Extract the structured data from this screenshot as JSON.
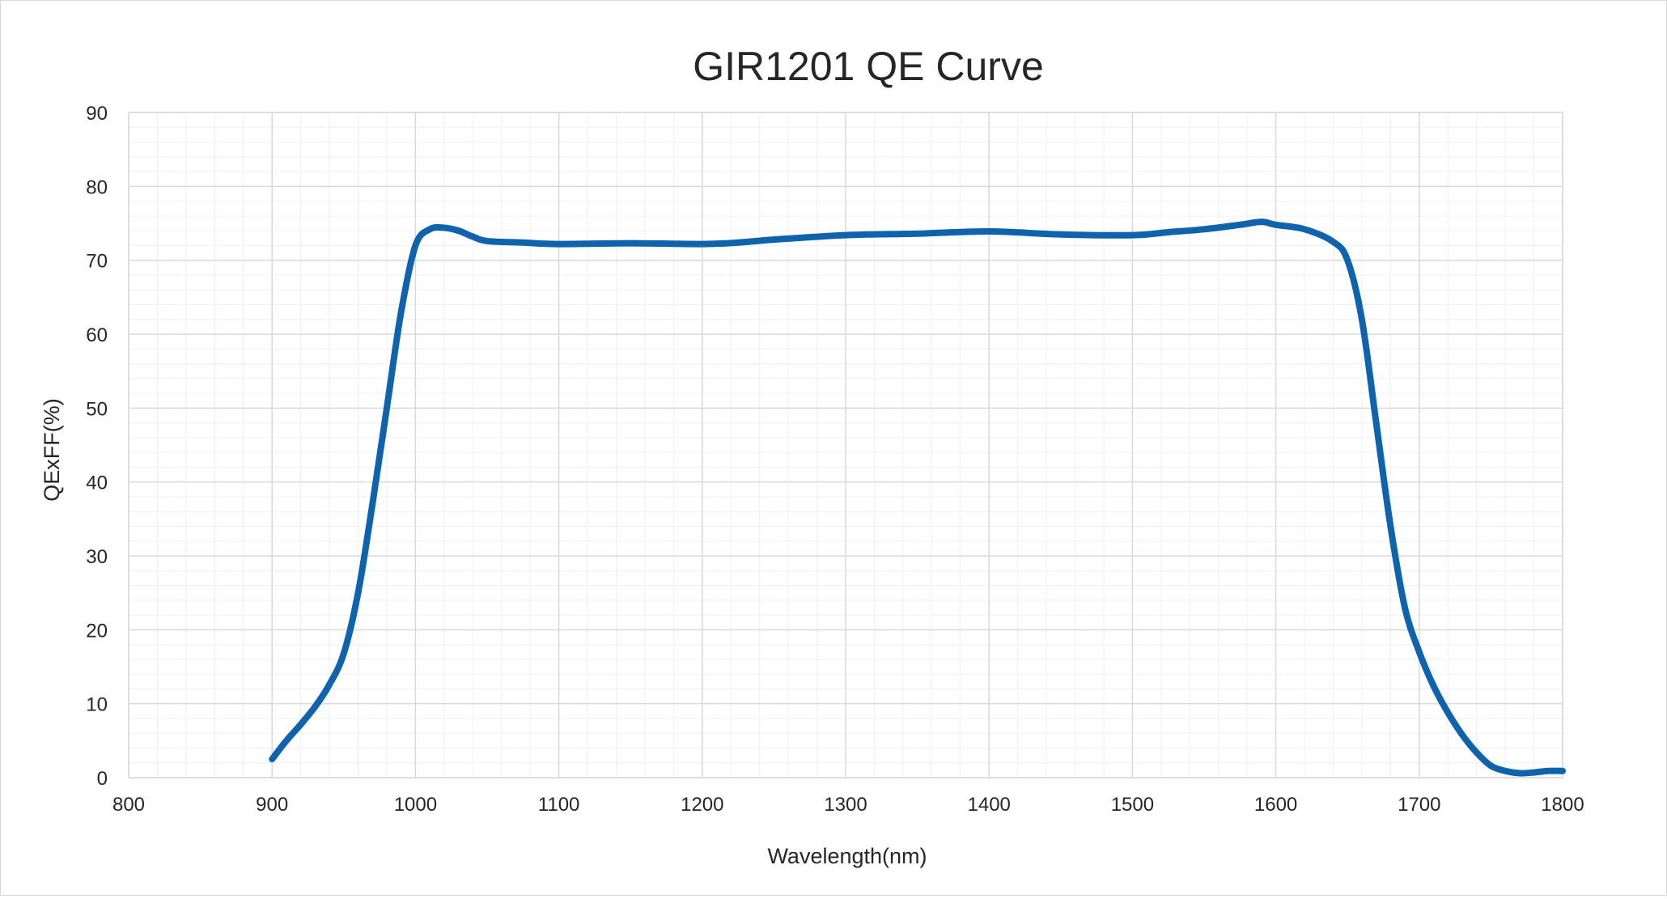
{
  "chart_data": {
    "type": "line",
    "title": "GIR1201 QE Curve",
    "xlabel": "Wavelength(nm)",
    "ylabel": "QExFF(%)",
    "xlim": [
      800,
      1800
    ],
    "ylim": [
      0,
      90
    ],
    "x_ticks": [
      800,
      900,
      1000,
      1100,
      1200,
      1300,
      1400,
      1500,
      1600,
      1700,
      1800
    ],
    "y_ticks": [
      0,
      10,
      20,
      30,
      40,
      50,
      60,
      70,
      80,
      90
    ],
    "x_tick_labels": [
      "800",
      "900",
      "1000",
      "1100",
      "1200",
      "1300",
      "1400",
      "1500",
      "1600",
      "1700",
      "1800"
    ],
    "y_tick_labels": [
      "0",
      "10",
      "20",
      "30",
      "40",
      "50",
      "60",
      "70",
      "80",
      "90"
    ],
    "grid": true,
    "minor_grid": true,
    "legend": "none",
    "series": [
      {
        "color": "#0f63ad",
        "points": [
          [
            900,
            2.5
          ],
          [
            910,
            5
          ],
          [
            920,
            7.2
          ],
          [
            930,
            9.6
          ],
          [
            940,
            12.6
          ],
          [
            950,
            16.8
          ],
          [
            960,
            25
          ],
          [
            970,
            37
          ],
          [
            980,
            50
          ],
          [
            990,
            63
          ],
          [
            1000,
            72
          ],
          [
            1010,
            74.2
          ],
          [
            1020,
            74.4
          ],
          [
            1030,
            74
          ],
          [
            1040,
            73.2
          ],
          [
            1050,
            72.6
          ],
          [
            1075,
            72.4
          ],
          [
            1100,
            72.2
          ],
          [
            1150,
            72.3
          ],
          [
            1200,
            72.2
          ],
          [
            1225,
            72.4
          ],
          [
            1250,
            72.8
          ],
          [
            1300,
            73.4
          ],
          [
            1350,
            73.6
          ],
          [
            1400,
            73.9
          ],
          [
            1450,
            73.5
          ],
          [
            1500,
            73.4
          ],
          [
            1525,
            73.8
          ],
          [
            1550,
            74.2
          ],
          [
            1575,
            74.8
          ],
          [
            1590,
            75.2
          ],
          [
            1600,
            74.8
          ],
          [
            1620,
            74.2
          ],
          [
            1640,
            72.5
          ],
          [
            1650,
            70
          ],
          [
            1660,
            62
          ],
          [
            1670,
            48
          ],
          [
            1680,
            34
          ],
          [
            1690,
            23
          ],
          [
            1700,
            17
          ],
          [
            1710,
            12.4
          ],
          [
            1720,
            8.8
          ],
          [
            1730,
            5.8
          ],
          [
            1740,
            3.4
          ],
          [
            1750,
            1.6
          ],
          [
            1760,
            0.9
          ],
          [
            1770,
            0.6
          ],
          [
            1780,
            0.7
          ],
          [
            1790,
            0.9
          ],
          [
            1800,
            0.9
          ]
        ]
      }
    ]
  }
}
